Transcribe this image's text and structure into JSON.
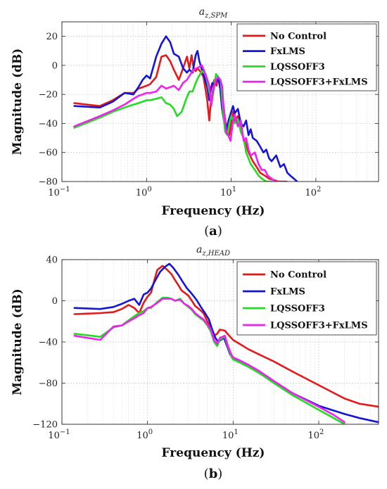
{
  "chart_data": [
    {
      "type": "line",
      "title_main": "a",
      "title_sub": "z,SPM",
      "caption_letter": "a",
      "xlabel": "Frequency (Hz)",
      "ylabel": "Magnitude (dB)",
      "xscale": "log",
      "xlim": [
        0.1,
        550
      ],
      "ylim": [
        -80,
        30
      ],
      "xticks": [
        0.1,
        1,
        10,
        100
      ],
      "xtick_labels": [
        [
          "10",
          "−1"
        ],
        [
          "10",
          "0"
        ],
        [
          "10",
          "1"
        ],
        [
          "10",
          "2"
        ]
      ],
      "yticks": [
        -80,
        -60,
        -40,
        -20,
        0,
        20
      ],
      "ytick_labels": [
        "−80",
        "−60",
        "−40",
        "−20",
        "0",
        "20"
      ],
      "grid": true,
      "legend_position": "top-right",
      "series": [
        {
          "name": "No Control",
          "color": "#e41a1a",
          "x": [
            0.14,
            0.28,
            0.4,
            0.55,
            0.7,
            0.8,
            0.9,
            1.0,
            1.1,
            1.3,
            1.5,
            1.7,
            1.9,
            2.1,
            2.4,
            2.7,
            3.0,
            3.2,
            3.4,
            3.6,
            3.8,
            4.0,
            4.3,
            4.7,
            5.2,
            5.5,
            5.8,
            6.0,
            6.3,
            6.7,
            7.0,
            7.3,
            7.6,
            8.0,
            8.5,
            9.0,
            9.5,
            10,
            10.5,
            11,
            12,
            13,
            14,
            15,
            16,
            18,
            20,
            22,
            25,
            28,
            32,
            36,
            40,
            45
          ],
          "y": [
            -26,
            -28,
            -24,
            -19,
            -19,
            -16,
            -15,
            -14,
            -13,
            -8,
            6,
            7,
            3,
            -3,
            -10,
            -2,
            6,
            -2,
            7,
            -2,
            -4,
            -2,
            -4,
            -8,
            -24,
            -38,
            -22,
            -20,
            -10,
            -14,
            -8,
            -12,
            -15,
            -25,
            -38,
            -45,
            -48,
            -40,
            -32,
            -38,
            -35,
            -45,
            -50,
            -55,
            -60,
            -66,
            -70,
            -74,
            -76,
            -78,
            -79,
            -80,
            -80,
            -80
          ]
        },
        {
          "name": "FxLMS",
          "color": "#1515d8",
          "x": [
            0.14,
            0.28,
            0.4,
            0.55,
            0.7,
            0.8,
            0.9,
            1.0,
            1.1,
            1.3,
            1.5,
            1.7,
            1.9,
            2.1,
            2.4,
            2.7,
            3.0,
            3.2,
            3.5,
            3.8,
            4.0,
            4.2,
            4.5,
            4.8,
            5.2,
            5.5,
            5.8,
            6.0,
            6.3,
            6.7,
            7.0,
            7.4,
            7.8,
            8.2,
            8.7,
            9.3,
            10,
            10.5,
            11,
            12,
            13,
            14,
            15,
            16,
            17,
            18,
            20,
            22,
            24,
            26,
            28,
            30,
            34,
            38,
            42,
            46,
            50,
            55,
            60
          ],
          "y": [
            -28,
            -29,
            -25,
            -19,
            -20,
            -15,
            -10,
            -7,
            -9,
            6,
            15,
            20,
            16,
            8,
            6,
            -2,
            -5,
            -3,
            -5,
            7,
            10,
            3,
            -3,
            -8,
            -15,
            -24,
            -15,
            -12,
            -14,
            -10,
            -8,
            -16,
            -30,
            -38,
            -45,
            -38,
            -32,
            -28,
            -33,
            -30,
            -40,
            -42,
            -38,
            -48,
            -44,
            -50,
            -52,
            -56,
            -60,
            -58,
            -64,
            -66,
            -62,
            -70,
            -68,
            -74,
            -76,
            -78,
            -80
          ]
        },
        {
          "name": "LQSSOFF3",
          "color": "#22dd22",
          "x": [
            0.14,
            0.28,
            0.4,
            0.55,
            0.7,
            0.8,
            0.9,
            1.0,
            1.1,
            1.3,
            1.5,
            1.7,
            1.9,
            2.1,
            2.3,
            2.6,
            2.9,
            3.2,
            3.5,
            3.8,
            4.1,
            4.5,
            5.0,
            5.5,
            5.8,
            6.2,
            6.6,
            7.0,
            7.5,
            8.0,
            8.5,
            9.0,
            9.5,
            10,
            11,
            12,
            13,
            14,
            15,
            17,
            19,
            21,
            23,
            26,
            30
          ],
          "y": [
            -43,
            -36,
            -32,
            -29,
            -27,
            -26,
            -25,
            -24,
            -24,
            -23,
            -22,
            -26,
            -27,
            -30,
            -35,
            -32,
            -24,
            -18,
            -18,
            -12,
            -8,
            -4,
            -6,
            -18,
            -24,
            -18,
            -6,
            -8,
            -10,
            -32,
            -46,
            -48,
            -40,
            -35,
            -40,
            -37,
            -46,
            -50,
            -60,
            -68,
            -72,
            -76,
            -78,
            -80,
            -80
          ]
        },
        {
          "name": "LQSSOFF3+FxLMS",
          "color": "#ee22ee",
          "x": [
            0.14,
            0.28,
            0.4,
            0.55,
            0.7,
            0.8,
            0.9,
            1.0,
            1.1,
            1.3,
            1.5,
            1.7,
            1.9,
            2.1,
            2.4,
            2.7,
            3.0,
            3.3,
            3.6,
            3.9,
            4.2,
            4.5,
            4.8,
            5.1,
            5.5,
            5.8,
            6.2,
            6.6,
            7.0,
            7.4,
            7.8,
            8.2,
            8.7,
            9.2,
            9.8,
            10.4,
            11,
            12,
            13,
            14,
            15,
            16,
            17,
            19,
            21,
            23,
            25,
            27,
            30,
            33,
            36,
            40
          ],
          "y": [
            -42,
            -35,
            -31,
            -27,
            -23,
            -21,
            -20,
            -19,
            -19,
            -18,
            -14,
            -16,
            -15,
            -14,
            -17,
            -12,
            -10,
            -6,
            -3,
            -2,
            -1,
            0,
            -4,
            -8,
            -14,
            -28,
            -16,
            -10,
            -8,
            -10,
            -14,
            -32,
            -46,
            -48,
            -52,
            -40,
            -34,
            -42,
            -38,
            -52,
            -50,
            -58,
            -62,
            -60,
            -68,
            -72,
            -72,
            -76,
            -78,
            -80,
            -80,
            -80
          ]
        }
      ]
    },
    {
      "type": "line",
      "title_main": "a",
      "title_sub": "z,HEAD",
      "caption_letter": "b",
      "xlabel": "Frequency (Hz)",
      "ylabel": "Magnitude (dB)",
      "xscale": "log",
      "xlim": [
        0.1,
        500
      ],
      "ylim": [
        -120,
        40
      ],
      "xticks": [
        0.1,
        1,
        10,
        100
      ],
      "xtick_labels": [
        [
          "10",
          "−1"
        ],
        [
          "10",
          "0"
        ],
        [
          "10",
          "1"
        ],
        [
          "10",
          "2"
        ]
      ],
      "yticks": [
        -120,
        -80,
        -40,
        0,
        40
      ],
      "ytick_labels": [
        "−120",
        "−80",
        "−40",
        "0",
        "40"
      ],
      "grid": true,
      "legend_position": "top-right",
      "series": [
        {
          "name": "No Control",
          "color": "#e41a1a",
          "x": [
            0.14,
            0.28,
            0.4,
            0.5,
            0.6,
            0.7,
            0.8,
            0.9,
            1.0,
            1.1,
            1.2,
            1.3,
            1.5,
            1.7,
            1.9,
            2.1,
            2.3,
            2.5,
            2.7,
            3.0,
            3.3,
            3.6,
            4.0,
            4.5,
            5.0,
            5.5,
            6.0,
            6.5,
            7.0,
            8.0,
            9.0,
            10,
            12,
            15,
            20,
            30,
            50,
            100,
            200,
            300,
            500
          ],
          "y": [
            -13,
            -12,
            -11,
            -8,
            -4,
            -7,
            -12,
            -2,
            4,
            8,
            20,
            30,
            34,
            30,
            26,
            20,
            15,
            10,
            8,
            5,
            0,
            -5,
            -8,
            -12,
            -20,
            -28,
            -34,
            -32,
            -28,
            -29,
            -34,
            -38,
            -42,
            -47,
            -52,
            -59,
            -69,
            -82,
            -95,
            -100,
            -103
          ]
        },
        {
          "name": "FxLMS",
          "color": "#1515d8",
          "x": [
            0.14,
            0.28,
            0.4,
            0.5,
            0.6,
            0.7,
            0.8,
            0.9,
            1.0,
            1.1,
            1.2,
            1.4,
            1.6,
            1.8,
            2.0,
            2.3,
            2.6,
            2.9,
            3.2,
            3.5,
            3.8,
            4.2,
            4.7,
            5.2,
            5.7,
            6.2,
            6.7,
            7.2,
            7.8,
            8.5,
            9.2,
            10,
            12,
            15,
            20,
            30,
            50,
            100,
            200,
            300,
            500
          ],
          "y": [
            -7,
            -8,
            -6,
            -3,
            0,
            2,
            -4,
            6,
            8,
            12,
            18,
            28,
            33,
            36,
            32,
            25,
            18,
            12,
            8,
            4,
            0,
            -6,
            -12,
            -18,
            -28,
            -36,
            -40,
            -38,
            -36,
            -44,
            -52,
            -56,
            -60,
            -64,
            -70,
            -79,
            -90,
            -102,
            -110,
            -114,
            -118
          ]
        },
        {
          "name": "LQSSOFF3",
          "color": "#22dd22",
          "x": [
            0.14,
            0.28,
            0.4,
            0.5,
            0.6,
            0.7,
            0.8,
            0.9,
            1.0,
            1.1,
            1.3,
            1.5,
            1.7,
            1.9,
            2.1,
            2.4,
            2.7,
            3.0,
            3.3,
            3.6,
            4.0,
            4.5,
            5.0,
            5.5,
            6.0,
            6.5,
            7.0,
            7.5,
            8.0,
            8.7,
            9.5,
            10,
            12,
            15,
            20,
            30,
            50,
            100,
            150,
            200
          ],
          "y": [
            -32,
            -35,
            -26,
            -24,
            -19,
            -15,
            -12,
            -10,
            -7,
            -7,
            -1,
            3,
            3,
            2,
            0,
            2,
            -3,
            -6,
            -9,
            -13,
            -16,
            -19,
            -24,
            -30,
            -40,
            -44,
            -38,
            -36,
            -35,
            -45,
            -54,
            -57,
            -60,
            -64,
            -70,
            -80,
            -92,
            -106,
            -114,
            -120
          ]
        },
        {
          "name": "LQSSOFF3+FxLMS",
          "color": "#ee22ee",
          "x": [
            0.14,
            0.28,
            0.4,
            0.5,
            0.6,
            0.7,
            0.8,
            0.9,
            1.0,
            1.1,
            1.3,
            1.5,
            1.7,
            1.9,
            2.1,
            2.4,
            2.7,
            3.0,
            3.3,
            3.6,
            4.0,
            4.5,
            5.0,
            5.5,
            6.0,
            6.5,
            7.0,
            7.5,
            8.0,
            8.7,
            9.5,
            10,
            12,
            15,
            20,
            30,
            50,
            100,
            150,
            200
          ],
          "y": [
            -34,
            -38,
            -25,
            -24,
            -20,
            -17,
            -14,
            -12,
            -7,
            -6,
            -2,
            2,
            2,
            2,
            0,
            1,
            -3,
            -5,
            -8,
            -12,
            -15,
            -18,
            -23,
            -28,
            -38,
            -42,
            -36,
            -35,
            -34,
            -44,
            -52,
            -55,
            -58,
            -62,
            -68,
            -78,
            -90,
            -103,
            -111,
            -118
          ]
        }
      ]
    }
  ]
}
